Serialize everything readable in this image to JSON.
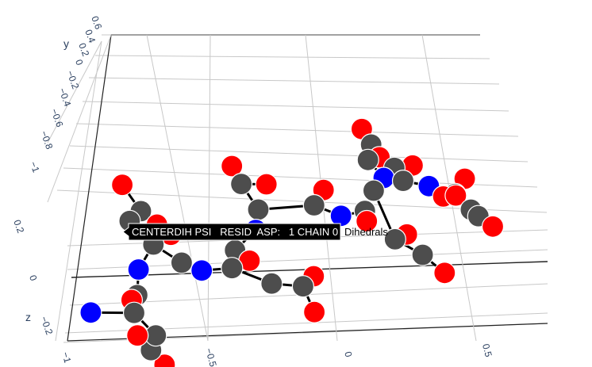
{
  "chart_data": {
    "type": "scatter3d",
    "axes": {
      "x": {
        "ticks": [
          "−1",
          "−0.5",
          "0",
          "0.5"
        ]
      },
      "y": {
        "title": "y",
        "ticks": [
          "0.6",
          "0.4",
          "0.2",
          "0",
          "−0.2",
          "−0.4",
          "−0.6",
          "−0.8",
          "−1"
        ]
      },
      "z": {
        "title": "z",
        "ticks": [
          "0.2",
          "0",
          "−0.2"
        ]
      }
    },
    "hover": {
      "label": "CENTERDIH PSI   RESID  ASP:   1 CHAIN 0",
      "series": "Dihedrals"
    },
    "colors": {
      "carbon": "#4d4d4d",
      "oxygen": "#ff0000",
      "nitrogen": "#0000ff",
      "bond": "#000000",
      "axis_text": "#2a3f5f",
      "hover_bg": "#000000",
      "hover_text": "#ffffff"
    },
    "atoms": [
      {
        "el": "C",
        "x": -0.62,
        "y": -0.3,
        "z": 0.2
      },
      {
        "el": "O",
        "x": -0.66,
        "y": -0.1,
        "z": 0.2
      },
      {
        "el": "O",
        "x": -0.58,
        "y": -0.42,
        "z": 0.22
      },
      {
        "el": "C",
        "x": -0.66,
        "y": -0.34,
        "z": 0.16
      },
      {
        "el": "O",
        "x": -0.54,
        "y": -0.46,
        "z": 0.18
      },
      {
        "el": "C",
        "x": -0.6,
        "y": -0.5,
        "z": 0.14
      },
      {
        "el": "C",
        "x": -0.52,
        "y": -0.6,
        "z": 0.1
      },
      {
        "el": "N",
        "x": -0.46,
        "y": -0.64,
        "z": 0.08
      },
      {
        "el": "N",
        "x": -0.66,
        "y": -0.62,
        "z": 0.06
      },
      {
        "el": "C",
        "x": -0.68,
        "y": -0.78,
        "z": 0.02
      },
      {
        "el": "O",
        "x": -0.7,
        "y": -0.8,
        "z": 0.0
      },
      {
        "el": "C",
        "x": -0.7,
        "y": -0.88,
        "z": -0.02
      },
      {
        "el": "N",
        "x": -0.84,
        "y": -0.9,
        "z": 0.0
      },
      {
        "el": "C",
        "x": -0.64,
        "y": -0.96,
        "z": -0.12
      },
      {
        "el": "O",
        "x": -0.7,
        "y": -0.98,
        "z": -0.1
      },
      {
        "el": "C",
        "x": -0.66,
        "y": -1.0,
        "z": -0.2
      },
      {
        "el": "O",
        "x": -0.62,
        "y": -1.02,
        "z": -0.3
      },
      {
        "el": "C",
        "x": -0.36,
        "y": -0.6,
        "z": 0.06
      },
      {
        "el": "C",
        "x": -0.34,
        "y": -0.5,
        "z": 0.1
      },
      {
        "el": "O",
        "x": -0.3,
        "y": -0.56,
        "z": 0.08
      },
      {
        "el": "N",
        "x": -0.26,
        "y": -0.36,
        "z": 0.12
      },
      {
        "el": "C",
        "x": -0.24,
        "y": -0.24,
        "z": 0.16
      },
      {
        "el": "C",
        "x": -0.28,
        "y": -0.1,
        "z": 0.22
      },
      {
        "el": "O",
        "x": -0.3,
        "y": 0.0,
        "z": 0.26
      },
      {
        "el": "O",
        "x": -0.2,
        "y": -0.1,
        "z": 0.22
      },
      {
        "el": "C",
        "x": -0.06,
        "y": -0.22,
        "z": 0.18
      },
      {
        "el": "O",
        "x": -0.02,
        "y": -0.12,
        "z": 0.2
      },
      {
        "el": "N",
        "x": 0.02,
        "y": -0.28,
        "z": 0.16
      },
      {
        "el": "C",
        "x": -0.24,
        "y": -0.66,
        "z": 0.0
      },
      {
        "el": "C",
        "x": -0.14,
        "y": -0.66,
        "z": -0.02
      },
      {
        "el": "O",
        "x": -0.1,
        "y": -0.6,
        "z": 0.0
      },
      {
        "el": "O",
        "x": -0.12,
        "y": -0.82,
        "z": -0.06
      },
      {
        "el": "C",
        "x": 0.1,
        "y": -0.24,
        "z": 0.16
      },
      {
        "el": "O",
        "x": 0.1,
        "y": -0.3,
        "z": 0.14
      },
      {
        "el": "C",
        "x": 0.14,
        "y": -0.12,
        "z": 0.2
      },
      {
        "el": "N",
        "x": 0.18,
        "y": -0.04,
        "z": 0.22
      },
      {
        "el": "C",
        "x": 0.14,
        "y": 0.06,
        "z": 0.26
      },
      {
        "el": "O",
        "x": 0.18,
        "y": 0.1,
        "z": 0.24
      },
      {
        "el": "C",
        "x": 0.16,
        "y": 0.16,
        "z": 0.28
      },
      {
        "el": "O",
        "x": 0.14,
        "y": 0.26,
        "z": 0.3
      },
      {
        "el": "C",
        "x": 0.22,
        "y": 0.02,
        "z": 0.24
      },
      {
        "el": "C",
        "x": 0.24,
        "y": -0.06,
        "z": 0.22
      },
      {
        "el": "O",
        "x": 0.28,
        "y": 0.04,
        "z": 0.24
      },
      {
        "el": "N",
        "x": 0.32,
        "y": -0.08,
        "z": 0.2
      },
      {
        "el": "O",
        "x": 0.36,
        "y": -0.14,
        "z": 0.18
      },
      {
        "el": "C",
        "x": 0.4,
        "y": -0.12,
        "z": 0.18
      },
      {
        "el": "O",
        "x": 0.44,
        "y": -0.02,
        "z": 0.2
      },
      {
        "el": "O",
        "x": 0.4,
        "y": -0.14,
        "z": 0.19
      },
      {
        "el": "C",
        "x": 0.44,
        "y": -0.22,
        "z": 0.16
      },
      {
        "el": "C",
        "x": 0.46,
        "y": -0.26,
        "z": 0.15
      },
      {
        "el": "O",
        "x": 0.5,
        "y": -0.32,
        "z": 0.13
      },
      {
        "el": "C",
        "x": 0.18,
        "y": -0.4,
        "z": 0.1
      },
      {
        "el": "O",
        "x": 0.22,
        "y": -0.38,
        "z": 0.12
      },
      {
        "el": "C",
        "x": 0.26,
        "y": -0.48,
        "z": 0.06
      },
      {
        "el": "O",
        "x": 0.32,
        "y": -0.58,
        "z": 0.02
      }
    ],
    "bonds": [
      [
        0,
        1
      ],
      [
        0,
        2
      ],
      [
        0,
        3
      ],
      [
        3,
        5
      ],
      [
        5,
        4
      ],
      [
        5,
        6
      ],
      [
        6,
        7
      ],
      [
        5,
        8
      ],
      [
        8,
        9
      ],
      [
        9,
        10
      ],
      [
        9,
        11
      ],
      [
        11,
        12
      ],
      [
        11,
        13
      ],
      [
        13,
        14
      ],
      [
        13,
        15
      ],
      [
        15,
        16
      ],
      [
        7,
        17
      ],
      [
        17,
        18
      ],
      [
        18,
        20
      ],
      [
        17,
        19
      ],
      [
        20,
        21
      ],
      [
        21,
        22
      ],
      [
        22,
        23
      ],
      [
        22,
        24
      ],
      [
        21,
        25
      ],
      [
        25,
        26
      ],
      [
        25,
        27
      ],
      [
        17,
        28
      ],
      [
        28,
        29
      ],
      [
        29,
        30
      ],
      [
        29,
        31
      ],
      [
        27,
        32
      ],
      [
        32,
        33
      ],
      [
        32,
        34
      ],
      [
        34,
        35
      ],
      [
        35,
        36
      ],
      [
        36,
        37
      ],
      [
        36,
        38
      ],
      [
        38,
        39
      ],
      [
        35,
        40
      ],
      [
        40,
        41
      ],
      [
        40,
        42
      ],
      [
        41,
        43
      ],
      [
        43,
        44
      ],
      [
        43,
        45
      ],
      [
        45,
        46
      ],
      [
        45,
        47
      ],
      [
        45,
        48
      ],
      [
        48,
        49
      ],
      [
        49,
        50
      ],
      [
        34,
        51
      ],
      [
        51,
        52
      ],
      [
        51,
        53
      ],
      [
        53,
        54
      ]
    ],
    "camera": {
      "eye": [
        0.32,
        -1.55,
        1.05
      ]
    }
  }
}
